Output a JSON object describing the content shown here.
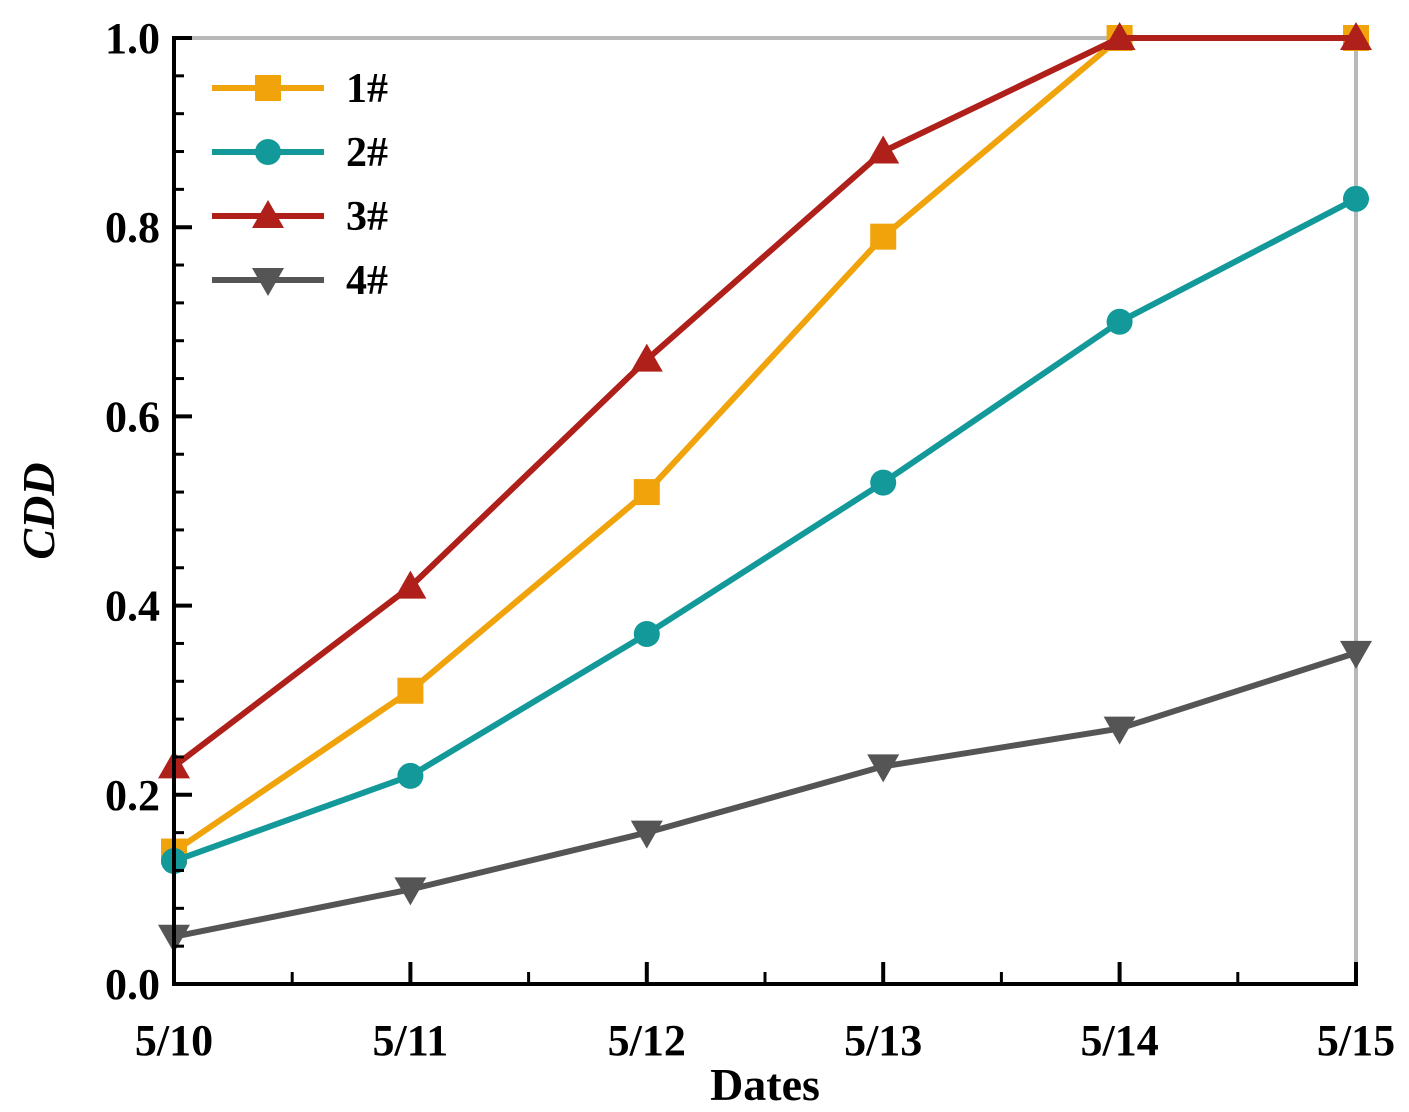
{
  "chart_data": {
    "type": "line",
    "title": "",
    "xlabel": "Dates",
    "ylabel": "CDD",
    "categories": [
      "5/10",
      "5/11",
      "5/12",
      "5/13",
      "5/14",
      "5/15"
    ],
    "ylim": [
      0.0,
      1.0
    ],
    "yticks": [
      "0.0",
      "0.2",
      "0.4",
      "0.6",
      "0.8",
      "1.0"
    ],
    "grid": false,
    "legend_position": "top-left",
    "series": [
      {
        "name": "1#",
        "marker": "square",
        "color": "#F0A30A",
        "values": [
          0.14,
          0.31,
          0.52,
          0.79,
          1.0,
          1.0
        ]
      },
      {
        "name": "2#",
        "marker": "circle",
        "color": "#13999A",
        "values": [
          0.13,
          0.22,
          0.37,
          0.53,
          0.7,
          0.83
        ]
      },
      {
        "name": "3#",
        "marker": "triangle-up",
        "color": "#B0201A",
        "values": [
          0.23,
          0.42,
          0.66,
          0.88,
          1.0,
          1.0
        ]
      },
      {
        "name": "4#",
        "marker": "triangle-down",
        "color": "#555555",
        "values": [
          0.05,
          0.1,
          0.16,
          0.23,
          0.27,
          0.35
        ]
      }
    ]
  }
}
